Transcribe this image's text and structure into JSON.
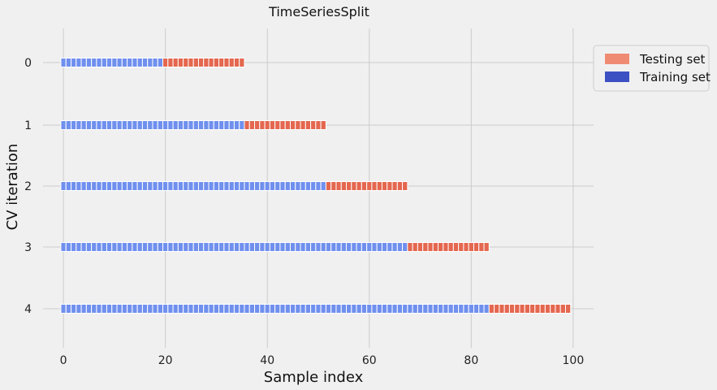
{
  "chart_data": {
    "type": "bar",
    "title": "TimeSeriesSplit",
    "xlabel": "Sample index",
    "ylabel": "CV iteration",
    "xlim": [
      -4,
      104
    ],
    "x_ticks": [
      0,
      20,
      40,
      60,
      80,
      100
    ],
    "y_ticks": [
      "0",
      "1",
      "2",
      "3",
      "4"
    ],
    "grid": true,
    "legend_placement": "right, outside top",
    "colors": {
      "testing": "#e4674f",
      "training": "#7090ee",
      "testing_legend": "#ef8b72",
      "training_legend": "#3d50c3"
    },
    "legend": [
      {
        "label": "Testing set",
        "color_key": "testing_legend"
      },
      {
        "label": "Training set",
        "color_key": "training_legend"
      }
    ],
    "iterations": [
      {
        "iteration": 0,
        "train": [
          0,
          19
        ],
        "test": [
          20,
          35
        ]
      },
      {
        "iteration": 1,
        "train": [
          0,
          35
        ],
        "test": [
          36,
          51
        ]
      },
      {
        "iteration": 2,
        "train": [
          0,
          51
        ],
        "test": [
          52,
          67
        ]
      },
      {
        "iteration": 3,
        "train": [
          0,
          67
        ],
        "test": [
          68,
          83
        ]
      },
      {
        "iteration": 4,
        "train": [
          0,
          83
        ],
        "test": [
          84,
          99
        ]
      }
    ]
  }
}
